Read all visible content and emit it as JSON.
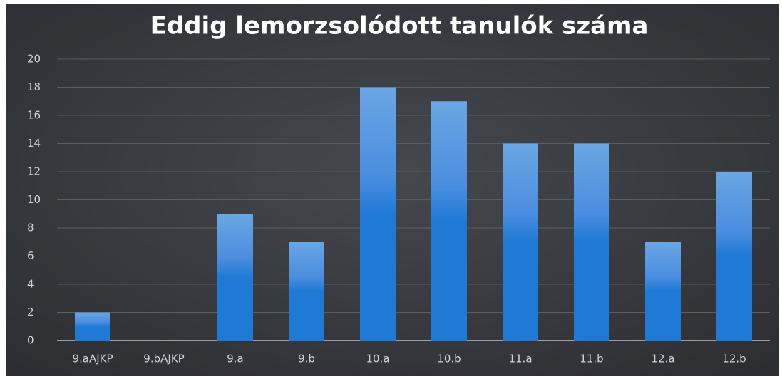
{
  "chart_data": {
    "type": "bar",
    "title": "Eddig lemorzsolódott tanulók száma",
    "categories": [
      "9.aAJKP",
      "9.bAJKP",
      "9.a",
      "9.b",
      "10.a",
      "10.b",
      "11.a",
      "11.b",
      "12.a",
      "12.b"
    ],
    "values": [
      2,
      0,
      9,
      7,
      18,
      17,
      14,
      14,
      7,
      12
    ],
    "color": "#1f7ad6",
    "ylim": [
      0,
      20
    ],
    "yticks": [
      0,
      2,
      4,
      6,
      8,
      10,
      12,
      14,
      16,
      18,
      20
    ],
    "grid": true
  }
}
